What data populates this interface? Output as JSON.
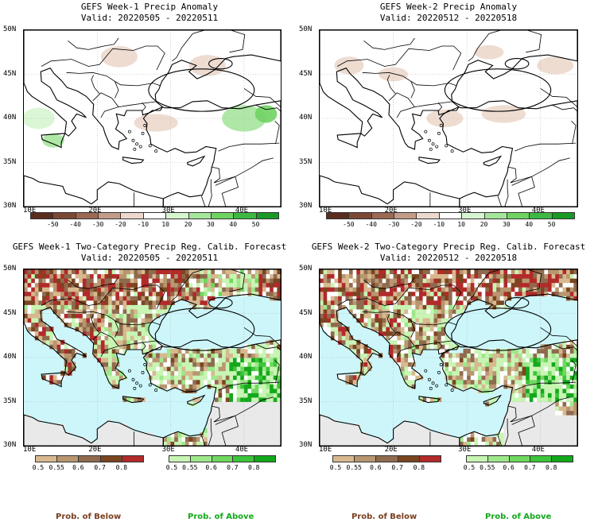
{
  "panels": [
    {
      "id": "p1",
      "title": "GEFS Week-1 Precip Anomaly",
      "valid": "Valid: 20220505 - 20220511"
    },
    {
      "id": "p2",
      "title": "GEFS Week-2 Precip Anomaly",
      "valid": "Valid: 20220512 - 20220518"
    },
    {
      "id": "p3",
      "title": "GEFS Week-1 Two-Category Precip Reg. Calib. Forecast",
      "valid": "Valid: 20220505 - 20220511"
    },
    {
      "id": "p4",
      "title": "GEFS Week-2 Two-Category Precip Reg. Calib. Forecast",
      "valid": "Valid: 20220512 - 20220518"
    }
  ],
  "axes": {
    "lat_labels": [
      "50N",
      "45N",
      "40N",
      "35N",
      "30N"
    ],
    "lon_labels": [
      "10E",
      "20E",
      "30E",
      "40E"
    ]
  },
  "anomaly_colorbar": {
    "labels": [
      "-50",
      "-40",
      "-30",
      "-20",
      "-10",
      "10",
      "20",
      "30",
      "40",
      "50"
    ],
    "colors": [
      "#5a2d1e",
      "#7a4a36",
      "#9a6a55",
      "#c39c88",
      "#ecd8cc",
      "#ffffff",
      "#d6f5d0",
      "#a6e59c",
      "#6fd362",
      "#3cb843",
      "#1a9a25"
    ]
  },
  "prob_colorbars": {
    "below": {
      "labels": [
        "0.5",
        "0.55",
        "0.6",
        "0.7",
        "0.8"
      ],
      "colors": [
        "#d8b98f",
        "#b89670",
        "#8f6a4e",
        "#7a4520",
        "#b22a2a"
      ]
    },
    "above": {
      "labels": [
        "0.5",
        "0.55",
        "0.6",
        "0.7",
        "0.8"
      ],
      "colors": [
        "#c8f5b4",
        "#9ee88c",
        "#6fd85e",
        "#3cc43a",
        "#14a81c"
      ]
    }
  },
  "legend": {
    "below": "Prob. of Below",
    "above": "Prob. of Above"
  },
  "colors": {
    "sea": "#ccf6fa",
    "land_bg": "#ffffff",
    "no_data": "#e9e9e9",
    "border": "#000000",
    "grid": "#b0b0b0"
  }
}
